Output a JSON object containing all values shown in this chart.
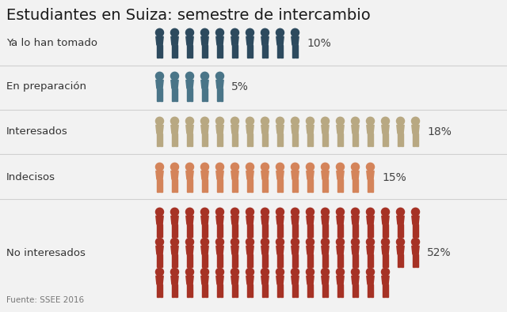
{
  "title": "Estudiantes en Suiza: semestre de intercambio",
  "title_fontsize": 14,
  "source": "Fuente: SSEE 2016",
  "background_color": "#f2f2f2",
  "categories": [
    {
      "label": "Ya lo han tomado",
      "pct": "10%",
      "count": 10,
      "color": "#2d4a5e"
    },
    {
      "label": "En preparación",
      "pct": "5%",
      "count": 5,
      "color": "#4a7588"
    },
    {
      "label": "Interesados",
      "pct": "18%",
      "count": 18,
      "color": "#b8a882"
    },
    {
      "label": "Indecisos",
      "pct": "15%",
      "count": 15,
      "color": "#d4845a"
    },
    {
      "label": "No interesados",
      "pct": "52%",
      "count": 52,
      "color": "#a63225"
    }
  ],
  "max_per_row": 18,
  "label_fontsize": 9.5,
  "pct_fontsize": 10,
  "sep_color": "#d0d0d0",
  "label_color": "#333333",
  "pct_color": "#444444",
  "source_fontsize": 7.5,
  "source_color": "#777777"
}
